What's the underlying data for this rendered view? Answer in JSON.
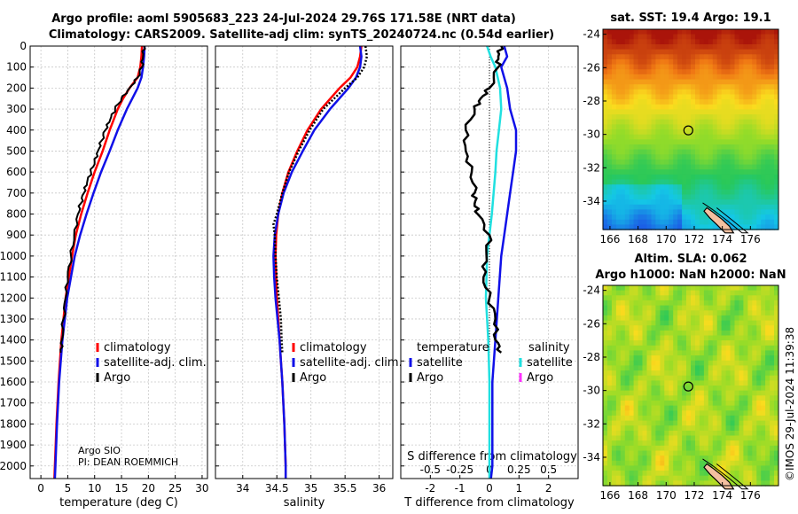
{
  "header": {
    "title_line1": "Argo profile: aoml 5905683_223 24-Jul-2024 29.76S 171.58E (NRT data)",
    "title_line2": "Climatology: CARS2009. Satellite-adj clim: synTS_20240724.nc (0.54d earlier)"
  },
  "credit": "©IMOS 29-Jul-2024 11:39:38",
  "colors": {
    "climatology": "#ff0000",
    "satellite": "#1010e8",
    "argo": "#000000",
    "salinity_sat": "#20e0e0",
    "salinity_argo": "#ff30ff"
  },
  "chart_data": [
    {
      "type": "line",
      "name": "temperature profile",
      "xlabel": "temperature (deg C)",
      "xlim": [
        -2,
        31
      ],
      "ylim": [
        2060,
        0
      ],
      "xticks": [
        0,
        5,
        10,
        15,
        20,
        25,
        30
      ],
      "yticks": [
        0,
        100,
        200,
        300,
        400,
        500,
        600,
        700,
        800,
        900,
        1000,
        1100,
        1200,
        1300,
        1400,
        1500,
        1600,
        1700,
        1800,
        1900,
        2000
      ],
      "legend": [
        "climatology",
        "satellite-adj. clim.",
        "Argo"
      ],
      "annotation": [
        "Argo SIO",
        "PI: DEAN ROEMMICH"
      ],
      "series": [
        {
          "name": "climatology",
          "depth": [
            0,
            50,
            100,
            150,
            200,
            250,
            300,
            400,
            500,
            600,
            700,
            800,
            900,
            1000,
            1200,
            1400,
            1600,
            1800,
            2000,
            2060
          ],
          "values": [
            18.8,
            18.7,
            18.5,
            18.0,
            16.5,
            15.3,
            14.3,
            12.8,
            11.5,
            10.0,
            8.7,
            7.5,
            6.5,
            5.8,
            4.6,
            3.8,
            3.3,
            2.9,
            2.6,
            2.5
          ]
        },
        {
          "name": "satellite-adj. clim.",
          "depth": [
            0,
            50,
            100,
            150,
            200,
            250,
            300,
            400,
            500,
            600,
            700,
            800,
            900,
            1000,
            1200,
            1400,
            1600,
            1800,
            2000,
            2060
          ],
          "values": [
            19.3,
            19.2,
            19.0,
            18.7,
            18.0,
            17.0,
            16.0,
            14.3,
            12.8,
            11.2,
            9.8,
            8.5,
            7.3,
            6.3,
            4.9,
            4.0,
            3.4,
            3.0,
            2.7,
            2.6
          ]
        },
        {
          "name": "Argo",
          "depth": [
            0,
            50,
            100,
            150,
            200,
            250,
            300,
            350,
            400,
            450,
            500,
            550,
            600,
            650,
            700,
            750,
            800,
            900,
            1000,
            1100,
            1200,
            1300,
            1400,
            1460
          ],
          "values": [
            19.2,
            19.0,
            18.8,
            18.0,
            16.5,
            15.0,
            13.8,
            12.9,
            12.0,
            11.3,
            10.6,
            10.0,
            9.3,
            8.6,
            8.0,
            7.4,
            6.9,
            6.2,
            5.6,
            5.0,
            4.6,
            4.2,
            3.9,
            3.7
          ]
        }
      ]
    },
    {
      "type": "line",
      "name": "salinity profile",
      "xlabel": "salinity",
      "xlim": [
        33.6,
        36.2
      ],
      "ylim": [
        2060,
        0
      ],
      "xticks": [
        34,
        34.5,
        35,
        35.5,
        36
      ],
      "legend": [
        "climatology",
        "satellite-adj. clim.",
        "Argo"
      ],
      "series": [
        {
          "name": "climatology",
          "depth": [
            0,
            50,
            100,
            150,
            200,
            300,
            400,
            500,
            600,
            700,
            800,
            900,
            1000,
            1100,
            1200,
            1300,
            1400,
            1500,
            1600,
            1800,
            2000,
            2060
          ],
          "values": [
            35.74,
            35.72,
            35.68,
            35.58,
            35.42,
            35.15,
            34.95,
            34.8,
            34.67,
            34.58,
            34.52,
            34.49,
            34.48,
            34.49,
            34.5,
            34.52,
            34.54,
            34.56,
            34.58,
            34.61,
            34.63,
            34.63
          ]
        },
        {
          "name": "satellite-adj. clim.",
          "depth": [
            0,
            50,
            100,
            150,
            200,
            300,
            400,
            500,
            600,
            700,
            800,
            900,
            1000,
            1100,
            1200,
            1300,
            1400,
            1500,
            1600,
            1800,
            2000,
            2060
          ],
          "values": [
            35.72,
            35.74,
            35.72,
            35.66,
            35.55,
            35.28,
            35.05,
            34.88,
            34.72,
            34.6,
            34.52,
            34.47,
            34.45,
            34.46,
            34.48,
            34.51,
            34.54,
            34.56,
            34.58,
            34.61,
            34.63,
            34.63
          ]
        },
        {
          "name": "Argo",
          "depth": [
            0,
            50,
            100,
            150,
            200,
            300,
            400,
            500,
            600,
            700,
            800,
            850,
            900,
            1000,
            1100,
            1200,
            1300,
            1400,
            1460
          ],
          "values": [
            35.8,
            35.82,
            35.78,
            35.68,
            35.5,
            35.18,
            34.98,
            34.82,
            34.68,
            34.58,
            34.5,
            34.45,
            34.47,
            34.48,
            34.5,
            34.53,
            34.56,
            34.57,
            34.58
          ]
        }
      ]
    },
    {
      "type": "line",
      "name": "difference from climatology",
      "xlabel": "T difference from climatology",
      "xlabel_top": "S difference from climatology",
      "xlim": [
        -3,
        3
      ],
      "ylim": [
        2060,
        0
      ],
      "xticks": [
        -2,
        -1,
        0,
        1,
        2
      ],
      "xticks_top": [
        -0.5,
        -0.25,
        0,
        0.25,
        0.5
      ],
      "legend_temperature_title": "temperature",
      "legend_salinity_title": "salinity",
      "legend_labels": [
        "satellite",
        "Argo"
      ],
      "series": [
        {
          "name": "temperature satellite",
          "depth": [
            0,
            50,
            100,
            200,
            300,
            400,
            500,
            600,
            700,
            800,
            900,
            1000,
            1200,
            1400,
            1600,
            2000,
            2060
          ],
          "values": [
            0.5,
            0.6,
            0.4,
            0.6,
            0.7,
            0.9,
            0.9,
            0.8,
            0.7,
            0.6,
            0.5,
            0.4,
            0.3,
            0.2,
            0.1,
            0.1,
            0.05
          ]
        },
        {
          "name": "temperature Argo",
          "depth": [
            0,
            50,
            100,
            200,
            250,
            300,
            400,
            500,
            600,
            700,
            750,
            800,
            900,
            1000,
            1100,
            1200,
            1300,
            1400,
            1460
          ],
          "values": [
            0.4,
            0.3,
            0.3,
            0.0,
            -0.3,
            -0.5,
            -0.8,
            -0.8,
            -0.6,
            -0.5,
            -0.5,
            -0.4,
            0.0,
            -0.1,
            -0.2,
            0.0,
            0.2,
            0.2,
            0.4
          ]
        },
        {
          "name": "salinity satellite",
          "depth": [
            0,
            50,
            100,
            200,
            300,
            400,
            500,
            600,
            800,
            1000,
            1200,
            1400,
            1600,
            2000,
            2060
          ],
          "values": [
            -0.02,
            0.01,
            0.05,
            0.09,
            0.1,
            0.08,
            0.06,
            0.05,
            0.02,
            -0.02,
            -0.03,
            -0.01,
            0.0,
            0.0,
            0.0
          ]
        },
        {
          "name": "salinity Argo",
          "depth": [
            1500,
            1560,
            1620
          ],
          "values": [
            0.0,
            0.0,
            0.0
          ]
        }
      ]
    },
    {
      "type": "heatmap",
      "name": "satellite SST map",
      "title": "sat. SST: 19.4 Argo: 19.1",
      "xlim": [
        165.5,
        178
      ],
      "ylim": [
        -35.7,
        -23.7
      ],
      "xticks": [
        166,
        168,
        170,
        172,
        174,
        176
      ],
      "yticks": [
        -24,
        -26,
        -28,
        -30,
        -32,
        -34
      ],
      "marker": {
        "lon": 171.58,
        "lat": -29.76
      }
    },
    {
      "type": "heatmap",
      "name": "altimetry SLA map",
      "title": "Altim. SLA: 0.062",
      "subtitle": "Argo h1000: NaN h2000: NaN",
      "xlim": [
        165.5,
        178
      ],
      "ylim": [
        -35.7,
        -23.7
      ],
      "xticks": [
        166,
        168,
        170,
        172,
        174,
        176
      ],
      "yticks": [
        -24,
        -26,
        -28,
        -30,
        -32,
        -34
      ],
      "marker": {
        "lon": 171.58,
        "lat": -29.76
      }
    }
  ]
}
